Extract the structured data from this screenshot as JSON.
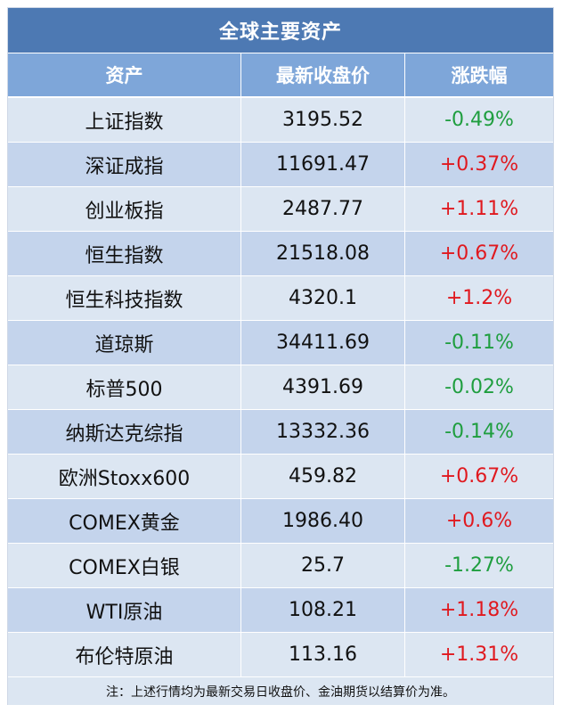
{
  "table": {
    "title": "全球主要资产",
    "headers": [
      "资产",
      "最新收盘价",
      "涨跌幅"
    ],
    "rows": [
      {
        "asset": "上证指数",
        "close": "3195.52",
        "change": "-0.49%",
        "direction": "down"
      },
      {
        "asset": "深证成指",
        "close": "11691.47",
        "change": "+0.37%",
        "direction": "up"
      },
      {
        "asset": "创业板指",
        "close": "2487.77",
        "change": "+1.11%",
        "direction": "up"
      },
      {
        "asset": "恒生指数",
        "close": "21518.08",
        "change": "+0.67%",
        "direction": "up"
      },
      {
        "asset": "恒生科技指数",
        "close": "4320.1",
        "change": "+1.2%",
        "direction": "up"
      },
      {
        "asset": "道琼斯",
        "close": "34411.69",
        "change": "-0.11%",
        "direction": "down"
      },
      {
        "asset": "标普500",
        "close": "4391.69",
        "change": "-0.02%",
        "direction": "down"
      },
      {
        "asset": "纳斯达克综指",
        "close": "13332.36",
        "change": "-0.14%",
        "direction": "down"
      },
      {
        "asset": "欧洲Stoxx600",
        "close": "459.82",
        "change": "+0.67%",
        "direction": "up"
      },
      {
        "asset": "COMEX黄金",
        "close": "1986.40",
        "change": "+0.6%",
        "direction": "up"
      },
      {
        "asset": "COMEX白银",
        "close": "25.7",
        "change": "-1.27%",
        "direction": "down"
      },
      {
        "asset": "WTI原油",
        "close": "108.21",
        "change": "+1.18%",
        "direction": "up"
      },
      {
        "asset": "布伦特原油",
        "close": "113.16",
        "change": "+1.31%",
        "direction": "up"
      }
    ],
    "note": "注：上述行情均为最新交易日收盘价、金油期货以结算价为准。"
  },
  "colors": {
    "title_bg": "#4d79b3",
    "header_bg": "#7ea6d9",
    "row_light": "#dce6f2",
    "row_dark": "#c4d4ec",
    "up": "#e0191f",
    "down": "#1f9e3f"
  }
}
